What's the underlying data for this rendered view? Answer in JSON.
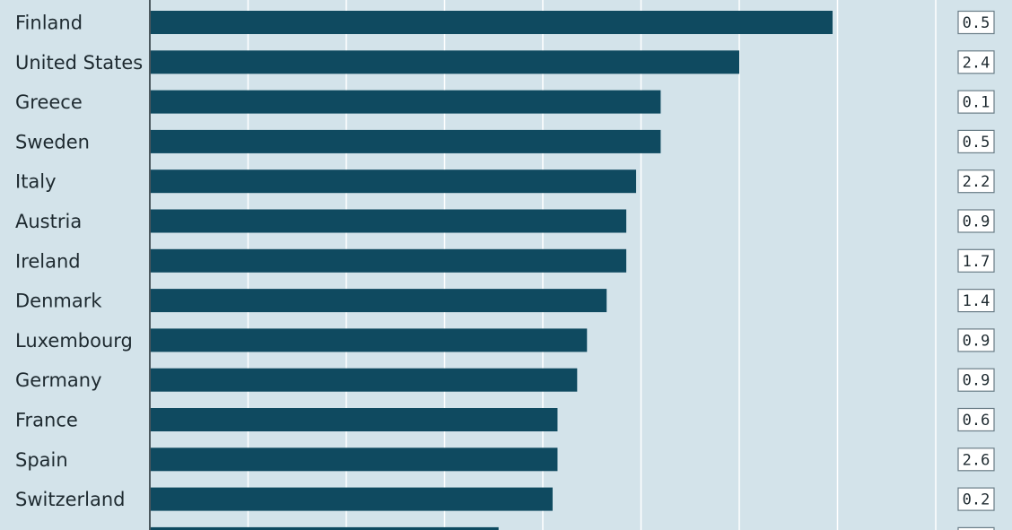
{
  "chart_data": {
    "type": "bar",
    "orientation": "horizontal",
    "categories": [
      "Finland",
      "United States",
      "Greece",
      "Sweden",
      "Italy",
      "Austria",
      "Ireland",
      "Denmark",
      "Luxembourg",
      "Germany",
      "France",
      "Spain",
      "Switzerland",
      ""
    ],
    "values": [
      6.95,
      6.0,
      5.2,
      5.2,
      4.95,
      4.85,
      4.85,
      4.65,
      4.45,
      4.35,
      4.15,
      4.15,
      4.1,
      3.55
    ],
    "side_values": [
      "0.5",
      "2.4",
      "0.1",
      "0.5",
      "2.2",
      "0.9",
      "1.7",
      "1.4",
      "0.9",
      "0.9",
      "0.6",
      "2.6",
      "0.2",
      ""
    ],
    "xlim": [
      0,
      8
    ],
    "gridlines": [
      1,
      2,
      3,
      4,
      5,
      6,
      7,
      8
    ],
    "grid": true,
    "title": "",
    "xlabel": "",
    "ylabel": "",
    "colors": {
      "bar": "#0f4a60",
      "background": "#d3e3ea",
      "gridline": "#ffffff",
      "axis": "#1e2a30",
      "box_fill": "#ffffff",
      "box_border": "#6a7d87"
    }
  }
}
